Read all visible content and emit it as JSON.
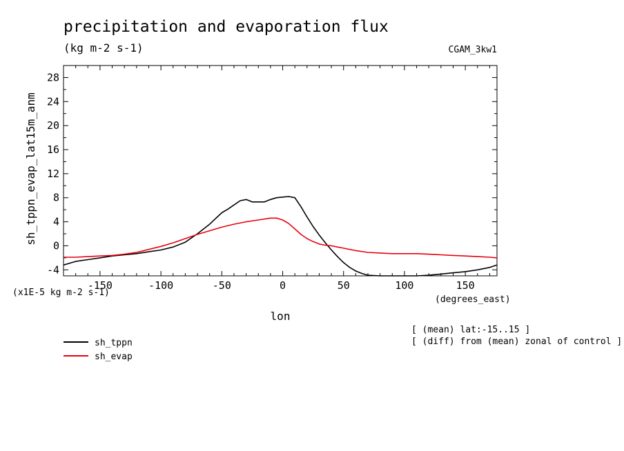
{
  "header": {
    "title": "precipitation and evaporation flux",
    "units": "(kg m-2 s-1)",
    "run_id": "CGAM_3kw1"
  },
  "notes": {
    "scale_label": "(x1E-5 kg m-2 s-1)",
    "x_units": "(degrees_east)",
    "mean_note": "[ (mean) lat:-15..15 ]",
    "diff_note": "[ (diff) from (mean) zonal of control ]"
  },
  "chart_data": {
    "type": "line",
    "title": "precipitation and evaporation flux",
    "xlabel": "lon",
    "ylabel": "sh_tppn_evap_lat15m_anm",
    "xlim": [
      -180,
      176
    ],
    "ylim": [
      -5,
      30
    ],
    "xticks": [
      -150,
      -100,
      -50,
      0,
      50,
      100,
      150
    ],
    "xtick_labels": [
      "-150",
      "-100",
      "-50",
      "0",
      "50",
      "100",
      "150"
    ],
    "yticks": [
      -4,
      0,
      4,
      8,
      12,
      16,
      20,
      24,
      28
    ],
    "ytick_labels": [
      "-4",
      "0",
      "4",
      "8",
      "12",
      "16",
      "20",
      "24",
      "28"
    ],
    "grid": false,
    "legend_position": "bottom-left",
    "series": [
      {
        "name": "sh_tppn",
        "color": "#000000",
        "x": [
          -180,
          -170,
          -160,
          -150,
          -140,
          -130,
          -120,
          -110,
          -100,
          -90,
          -80,
          -70,
          -60,
          -50,
          -45,
          -40,
          -35,
          -30,
          -25,
          -20,
          -15,
          -10,
          -5,
          0,
          5,
          10,
          15,
          20,
          25,
          30,
          35,
          40,
          45,
          50,
          55,
          60,
          65,
          70,
          80,
          90,
          100,
          110,
          120,
          130,
          140,
          150,
          160,
          170,
          176
        ],
        "values": [
          -3.2,
          -2.6,
          -2.3,
          -2.0,
          -1.7,
          -1.5,
          -1.3,
          -1.0,
          -0.7,
          -0.2,
          0.6,
          2.0,
          3.6,
          5.5,
          6.1,
          6.8,
          7.5,
          7.7,
          7.3,
          7.3,
          7.3,
          7.7,
          8.0,
          8.1,
          8.2,
          8.0,
          6.5,
          4.8,
          3.2,
          1.8,
          0.5,
          -0.7,
          -1.8,
          -2.8,
          -3.6,
          -4.2,
          -4.6,
          -4.9,
          -5.0,
          -5.0,
          -5.0,
          -5.0,
          -4.9,
          -4.7,
          -4.5,
          -4.3,
          -4.0,
          -3.6,
          -3.2
        ]
      },
      {
        "name": "sh_evap",
        "color": "#e8000b",
        "x": [
          -180,
          -170,
          -160,
          -150,
          -140,
          -130,
          -120,
          -110,
          -100,
          -90,
          -80,
          -70,
          -60,
          -50,
          -40,
          -30,
          -20,
          -10,
          -5,
          0,
          5,
          10,
          15,
          20,
          25,
          30,
          35,
          40,
          45,
          50,
          60,
          70,
          80,
          90,
          100,
          110,
          120,
          130,
          140,
          150,
          160,
          170,
          176
        ],
        "values": [
          -1.9,
          -1.9,
          -1.8,
          -1.7,
          -1.6,
          -1.4,
          -1.1,
          -0.6,
          -0.1,
          0.5,
          1.2,
          1.9,
          2.5,
          3.1,
          3.6,
          4.0,
          4.3,
          4.6,
          4.6,
          4.3,
          3.7,
          2.8,
          1.9,
          1.2,
          0.7,
          0.3,
          0.1,
          0.0,
          -0.2,
          -0.4,
          -0.8,
          -1.1,
          -1.2,
          -1.3,
          -1.3,
          -1.3,
          -1.4,
          -1.5,
          -1.6,
          -1.7,
          -1.8,
          -1.9,
          -2.0
        ]
      }
    ]
  }
}
